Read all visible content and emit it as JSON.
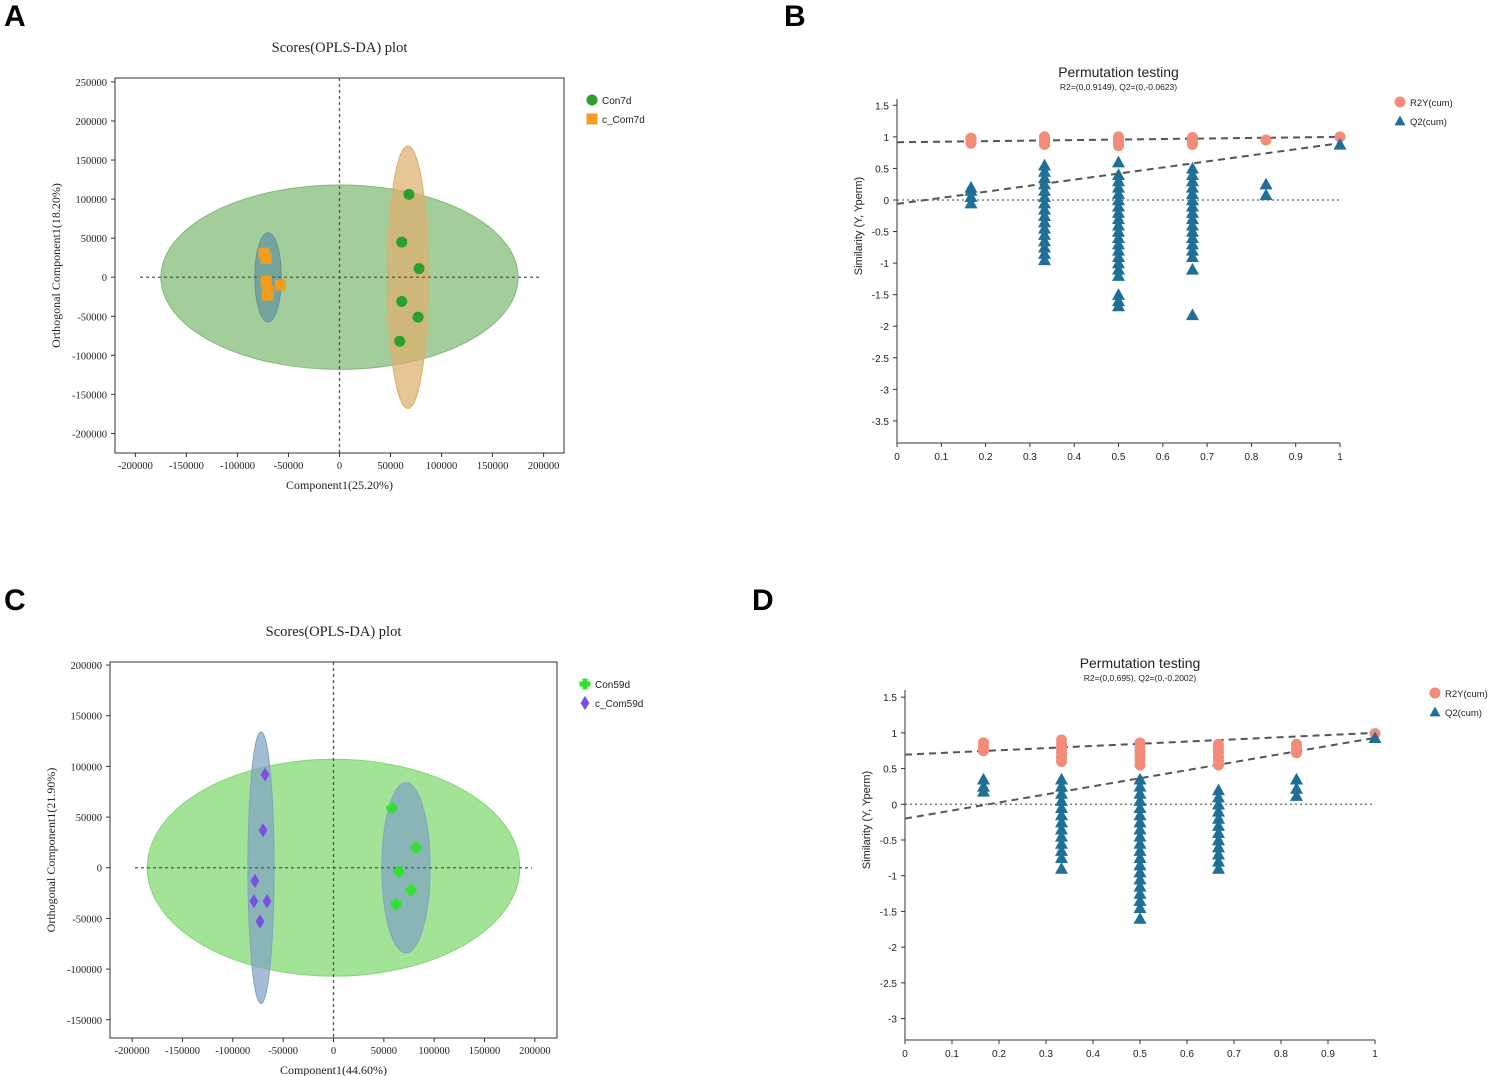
{
  "chart_data": [
    {
      "panel": "A",
      "type": "scatter",
      "title": "Scores(OPLS-DA) plot",
      "xlabel": "Component1(25.20%)",
      "ylabel": "Orthogonal Component1(18.20%)",
      "xlim": [
        -220000,
        220000
      ],
      "ylim": [
        -225000,
        255000
      ],
      "xticks": [
        -200000,
        -150000,
        -100000,
        -50000,
        0,
        50000,
        100000,
        150000,
        200000
      ],
      "xtick_labels": [
        "-200000",
        "-150000",
        "-100000",
        "-50000",
        "0",
        "50000",
        "100000",
        "150000",
        "200000"
      ],
      "yticks": [
        250000,
        200000,
        150000,
        100000,
        50000,
        0,
        -50000,
        -100000,
        -150000,
        -200000
      ],
      "ytick_labels": [
        "250000",
        "200000",
        "150000",
        "100000",
        "50000",
        "0",
        "-50000",
        "-100000",
        "-150000",
        "-200000"
      ],
      "legend_position": "right",
      "ellipses": [
        {
          "cx": 0,
          "cy": 0,
          "rx": 175000,
          "ry": 118000,
          "color": "#8fce84"
        },
        {
          "cx": -70000,
          "cy": 0,
          "rx": 13000,
          "ry": 57000,
          "color": "#6ea5b0"
        },
        {
          "cx": 67000,
          "cy": 0,
          "rx": 20000,
          "ry": 168000,
          "color": "#f5c27a"
        }
      ],
      "series": [
        {
          "name": "Con7d",
          "marker": "circle",
          "color": "#2ca02c",
          "points": [
            [
              68000,
              106000
            ],
            [
              61000,
              45000
            ],
            [
              78000,
              11000
            ],
            [
              61000,
              -31000
            ],
            [
              77000,
              -51000
            ],
            [
              59000,
              -82000
            ]
          ]
        },
        {
          "name": "c_Com7d",
          "marker": "square",
          "color": "#f39c1e",
          "points": [
            [
              -74000,
              31000
            ],
            [
              -72000,
              24000
            ],
            [
              -72000,
              -5000
            ],
            [
              -58000,
              -10000
            ],
            [
              -70000,
              -18000
            ],
            [
              -71000,
              -23000
            ]
          ]
        }
      ]
    },
    {
      "panel": "B",
      "type": "scatter",
      "title": "Permutation testing",
      "subtitle": "R2=(0,0.9149), Q2=(0,-0.0623)",
      "xlabel": "",
      "ylabel": "Similarity (Y, Yperm)",
      "xlim": [
        0,
        1
      ],
      "ylim": [
        -3.85,
        1.6
      ],
      "xticks": [
        0,
        0.1,
        0.2,
        0.3,
        0.4,
        0.5,
        0.6,
        0.7,
        0.8,
        0.9,
        1
      ],
      "xtick_labels": [
        "0",
        "0.1",
        "0.2",
        "0.3",
        "0.4",
        "0.5",
        "0.6",
        "0.7",
        "0.8",
        "0.9",
        "1"
      ],
      "yticks": [
        1.5,
        1,
        0.5,
        0,
        -0.5,
        -1,
        -1.5,
        -2,
        -2.5,
        -3,
        -3.5
      ],
      "ytick_labels": [
        "1.5",
        "1",
        "0.5",
        "0",
        "-0.5",
        "-1",
        "-1.5",
        "-2",
        "-2.5",
        "-3",
        "-3.5"
      ],
      "legend_position": "right",
      "lines": [
        {
          "name": "R2 regression",
          "x": [
            0,
            1
          ],
          "y": [
            0.9149,
            1.0
          ]
        },
        {
          "name": "Q2 regression",
          "x": [
            0,
            1
          ],
          "y": [
            -0.0623,
            0.9
          ]
        },
        {
          "name": "zero",
          "x": [
            0,
            1
          ],
          "y": [
            0,
            0
          ]
        }
      ],
      "series": [
        {
          "name": "R2Y(cum)",
          "marker": "circle",
          "color": "#f28b78",
          "points": [
            [
              0.167,
              0.9
            ],
            [
              0.167,
              0.95
            ],
            [
              0.167,
              0.98
            ],
            [
              0.333,
              0.88
            ],
            [
              0.333,
              0.92
            ],
            [
              0.333,
              0.95
            ],
            [
              0.333,
              0.98
            ],
            [
              0.333,
              1.0
            ],
            [
              0.5,
              0.86
            ],
            [
              0.5,
              0.9
            ],
            [
              0.5,
              0.94
            ],
            [
              0.5,
              0.97
            ],
            [
              0.5,
              1.0
            ],
            [
              0.667,
              0.88
            ],
            [
              0.667,
              0.92
            ],
            [
              0.667,
              0.96
            ],
            [
              0.667,
              0.99
            ],
            [
              0.833,
              0.95
            ],
            [
              1,
              1.0
            ]
          ]
        },
        {
          "name": "Q2(cum)",
          "marker": "triangle",
          "color": "#1f6f96",
          "points": [
            [
              0.167,
              0.2
            ],
            [
              0.167,
              0.15
            ],
            [
              0.167,
              0.05
            ],
            [
              0.167,
              -0.05
            ],
            [
              0.333,
              0.55
            ],
            [
              0.333,
              0.45
            ],
            [
              0.333,
              0.35
            ],
            [
              0.333,
              0.25
            ],
            [
              0.333,
              0.15
            ],
            [
              0.333,
              0.05
            ],
            [
              0.333,
              -0.05
            ],
            [
              0.333,
              -0.15
            ],
            [
              0.333,
              -0.25
            ],
            [
              0.333,
              -0.35
            ],
            [
              0.333,
              -0.45
            ],
            [
              0.333,
              -0.55
            ],
            [
              0.333,
              -0.65
            ],
            [
              0.333,
              -0.75
            ],
            [
              0.333,
              -0.85
            ],
            [
              0.333,
              -0.95
            ],
            [
              0.5,
              0.6
            ],
            [
              0.5,
              0.4
            ],
            [
              0.5,
              0.3
            ],
            [
              0.5,
              0.2
            ],
            [
              0.5,
              0.1
            ],
            [
              0.5,
              0.0
            ],
            [
              0.5,
              -0.1
            ],
            [
              0.5,
              -0.2
            ],
            [
              0.5,
              -0.3
            ],
            [
              0.5,
              -0.4
            ],
            [
              0.5,
              -0.5
            ],
            [
              0.5,
              -0.6
            ],
            [
              0.5,
              -0.7
            ],
            [
              0.5,
              -0.8
            ],
            [
              0.5,
              -0.9
            ],
            [
              0.5,
              -1.0
            ],
            [
              0.5,
              -1.1
            ],
            [
              0.5,
              -1.2
            ],
            [
              0.5,
              -1.5
            ],
            [
              0.5,
              -1.6
            ],
            [
              0.5,
              -1.68
            ],
            [
              0.667,
              0.5
            ],
            [
              0.667,
              0.4
            ],
            [
              0.667,
              0.3
            ],
            [
              0.667,
              0.2
            ],
            [
              0.667,
              0.1
            ],
            [
              0.667,
              0.0
            ],
            [
              0.667,
              -0.1
            ],
            [
              0.667,
              -0.2
            ],
            [
              0.667,
              -0.3
            ],
            [
              0.667,
              -0.4
            ],
            [
              0.667,
              -0.5
            ],
            [
              0.667,
              -0.6
            ],
            [
              0.667,
              -0.7
            ],
            [
              0.667,
              -0.8
            ],
            [
              0.667,
              -0.9
            ],
            [
              0.667,
              -1.1
            ],
            [
              0.667,
              -1.82
            ],
            [
              0.833,
              0.25
            ],
            [
              0.833,
              0.08
            ],
            [
              1,
              0.88
            ]
          ]
        }
      ]
    },
    {
      "panel": "C",
      "type": "scatter",
      "title": "Scores(OPLS-DA) plot",
      "xlabel": "Component1(44.60%)",
      "ylabel": "Orthogonal Component1(21.90%)",
      "xlim": [
        -222000,
        222000
      ],
      "ylim": [
        -168000,
        203000
      ],
      "xticks": [
        -200000,
        -150000,
        -100000,
        -50000,
        0,
        50000,
        100000,
        150000,
        200000
      ],
      "xtick_labels": [
        "-200000",
        "-150000",
        "-100000",
        "-50000",
        "0",
        "50000",
        "100000",
        "150000",
        "200000"
      ],
      "yticks": [
        200000,
        150000,
        100000,
        50000,
        0,
        -50000,
        -100000,
        -150000
      ],
      "ytick_labels": [
        "200000",
        "150000",
        "100000",
        "50000",
        "0",
        "-50000",
        "-100000",
        "-150000"
      ],
      "legend_position": "right",
      "ellipses": [
        {
          "cx": 0,
          "cy": 0,
          "rx": 185000,
          "ry": 107000,
          "color": "#8ef07c"
        },
        {
          "cx": -72000,
          "cy": 0,
          "rx": 13000,
          "ry": 134000,
          "color": "#8fb6d9"
        },
        {
          "cx": 72000,
          "cy": 0,
          "rx": 24000,
          "ry": 84000,
          "color": "#8fb6d9"
        }
      ],
      "series": [
        {
          "name": "Con59d",
          "marker": "plus",
          "color": "#2ee22e",
          "points": [
            [
              58000,
              59000
            ],
            [
              82000,
              20000
            ],
            [
              65000,
              -4000
            ],
            [
              77000,
              -22000
            ],
            [
              62000,
              -36000
            ]
          ]
        },
        {
          "name": "c_Com59d",
          "marker": "diamond",
          "color": "#7b4fe0",
          "points": [
            [
              -68000,
              92000
            ],
            [
              -70000,
              37000
            ],
            [
              -78000,
              -13000
            ],
            [
              -79000,
              -33000
            ],
            [
              -66000,
              -33000
            ],
            [
              -73000,
              -53000
            ]
          ]
        }
      ]
    },
    {
      "panel": "D",
      "type": "scatter",
      "title": "Permutation testing",
      "subtitle": "R2=(0,0.695), Q2=(0,-0.2002)",
      "xlabel": "",
      "ylabel": "Similarity (Y, Yperm)",
      "xlim": [
        0,
        1
      ],
      "ylim": [
        -3.3,
        1.6
      ],
      "xticks": [
        0,
        0.1,
        0.2,
        0.3,
        0.4,
        0.5,
        0.6,
        0.7,
        0.8,
        0.9,
        1
      ],
      "xtick_labels": [
        "0",
        "0.1",
        "0.2",
        "0.3",
        "0.4",
        "0.5",
        "0.6",
        "0.7",
        "0.8",
        "0.9",
        "1"
      ],
      "yticks": [
        1.5,
        1,
        0.5,
        0,
        -0.5,
        -1,
        -1.5,
        -2,
        -2.5,
        -3
      ],
      "ytick_labels": [
        "1.5",
        "1",
        "0.5",
        "0",
        "-0.5",
        "-1",
        "-1.5",
        "-2",
        "-2.5",
        "-3"
      ],
      "legend_position": "right",
      "lines": [
        {
          "name": "R2 regression",
          "x": [
            0,
            1
          ],
          "y": [
            0.695,
            1.0
          ]
        },
        {
          "name": "Q2 regression",
          "x": [
            0,
            1
          ],
          "y": [
            -0.2002,
            0.93
          ]
        },
        {
          "name": "zero",
          "x": [
            0,
            1
          ],
          "y": [
            0,
            0
          ]
        }
      ],
      "series": [
        {
          "name": "R2Y(cum)",
          "marker": "circle",
          "color": "#f28b78",
          "points": [
            [
              0.167,
              0.75
            ],
            [
              0.167,
              0.8
            ],
            [
              0.167,
              0.86
            ],
            [
              0.333,
              0.6
            ],
            [
              0.333,
              0.66
            ],
            [
              0.333,
              0.72
            ],
            [
              0.333,
              0.78
            ],
            [
              0.333,
              0.84
            ],
            [
              0.333,
              0.9
            ],
            [
              0.5,
              0.55
            ],
            [
              0.5,
              0.62
            ],
            [
              0.5,
              0.68
            ],
            [
              0.5,
              0.74
            ],
            [
              0.5,
              0.8
            ],
            [
              0.5,
              0.86
            ],
            [
              0.667,
              0.55
            ],
            [
              0.667,
              0.6
            ],
            [
              0.667,
              0.66
            ],
            [
              0.667,
              0.72
            ],
            [
              0.667,
              0.78
            ],
            [
              0.667,
              0.84
            ],
            [
              0.833,
              0.72
            ],
            [
              0.833,
              0.78
            ],
            [
              0.833,
              0.84
            ],
            [
              1,
              0.99
            ]
          ]
        },
        {
          "name": "Q2(cum)",
          "marker": "triangle",
          "color": "#1f6f96",
          "points": [
            [
              0.167,
              0.35
            ],
            [
              0.167,
              0.25
            ],
            [
              0.167,
              0.18
            ],
            [
              0.333,
              0.35
            ],
            [
              0.333,
              0.25
            ],
            [
              0.333,
              0.15
            ],
            [
              0.333,
              0.05
            ],
            [
              0.333,
              -0.05
            ],
            [
              0.333,
              -0.15
            ],
            [
              0.333,
              -0.25
            ],
            [
              0.333,
              -0.35
            ],
            [
              0.333,
              -0.45
            ],
            [
              0.333,
              -0.55
            ],
            [
              0.333,
              -0.65
            ],
            [
              0.333,
              -0.75
            ],
            [
              0.333,
              -0.9
            ],
            [
              0.5,
              0.35
            ],
            [
              0.5,
              0.25
            ],
            [
              0.5,
              0.15
            ],
            [
              0.5,
              0.05
            ],
            [
              0.5,
              -0.05
            ],
            [
              0.5,
              -0.15
            ],
            [
              0.5,
              -0.25
            ],
            [
              0.5,
              -0.35
            ],
            [
              0.5,
              -0.45
            ],
            [
              0.5,
              -0.55
            ],
            [
              0.5,
              -0.65
            ],
            [
              0.5,
              -0.75
            ],
            [
              0.5,
              -0.85
            ],
            [
              0.5,
              -0.95
            ],
            [
              0.5,
              -1.05
            ],
            [
              0.5,
              -1.15
            ],
            [
              0.5,
              -1.25
            ],
            [
              0.5,
              -1.35
            ],
            [
              0.5,
              -1.45
            ],
            [
              0.5,
              -1.6
            ],
            [
              0.667,
              0.2
            ],
            [
              0.667,
              0.1
            ],
            [
              0.667,
              0.0
            ],
            [
              0.667,
              -0.1
            ],
            [
              0.667,
              -0.2
            ],
            [
              0.667,
              -0.3
            ],
            [
              0.667,
              -0.4
            ],
            [
              0.667,
              -0.5
            ],
            [
              0.667,
              -0.6
            ],
            [
              0.667,
              -0.7
            ],
            [
              0.667,
              -0.8
            ],
            [
              0.667,
              -0.9
            ],
            [
              0.833,
              0.35
            ],
            [
              0.833,
              0.22
            ],
            [
              0.833,
              0.12
            ],
            [
              1,
              0.93
            ]
          ]
        }
      ]
    }
  ]
}
